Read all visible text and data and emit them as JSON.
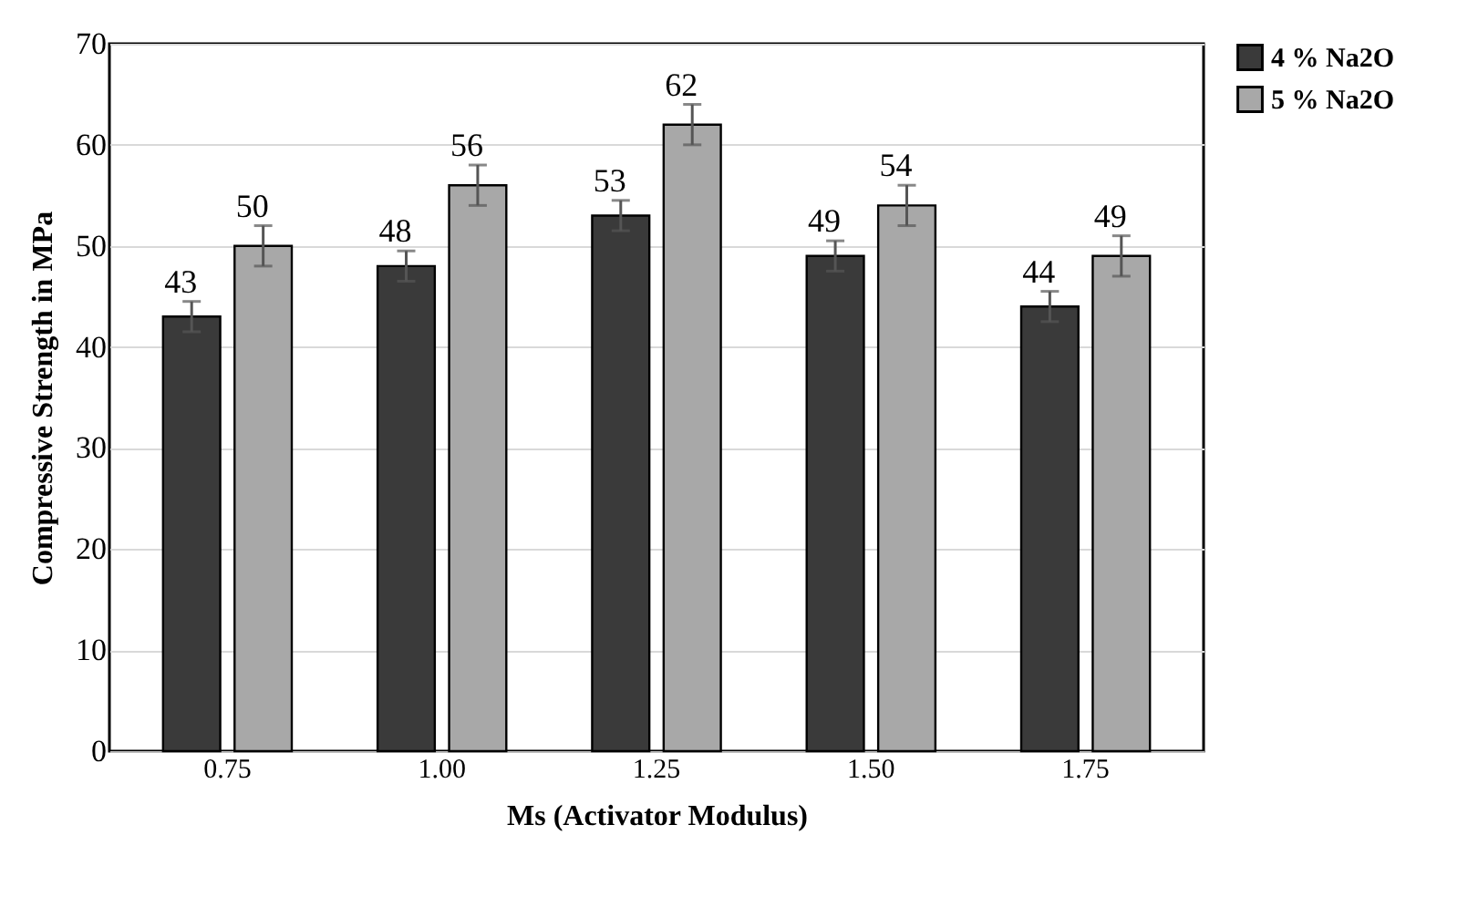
{
  "chart_data": {
    "type": "bar",
    "xlabel": "Ms (Activator Modulus)",
    "ylabel": "Compressive Strength in MPa",
    "categories": [
      "0.75",
      "1.00",
      "1.25",
      "1.50",
      "1.75"
    ],
    "series": [
      {
        "name": "4 % Na2O",
        "color": "#3a3a3a",
        "values": [
          43,
          48,
          53,
          49,
          44
        ],
        "errors": [
          1.5,
          1.5,
          1.5,
          1.5,
          1.5
        ]
      },
      {
        "name": "5 % Na2O",
        "color": "#a8a8a8",
        "values": [
          50,
          56,
          62,
          54,
          49
        ],
        "errors": [
          2,
          2,
          2,
          2,
          2
        ]
      }
    ],
    "ylim": [
      0,
      70
    ],
    "yticks": [
      0,
      10,
      20,
      30,
      40,
      50,
      60,
      70
    ],
    "grid": "y",
    "legend": "right",
    "data_labels": true
  }
}
